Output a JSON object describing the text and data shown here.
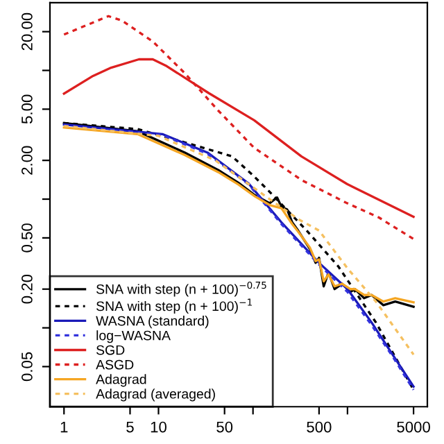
{
  "chart_data": {
    "type": "line",
    "log": "xy",
    "grid": false,
    "legend": "bottom left",
    "marker": "none",
    "xlim": [
      0.71,
      7000
    ],
    "ylim": [
      0.0244,
      33.6
    ],
    "xticks": [
      1,
      5,
      10,
      50,
      {
        "value": 100,
        "label": null
      },
      500,
      {
        "value": 1000,
        "label": null
      },
      5000
    ],
    "yticks": [
      0.05,
      {
        "value": 0.1,
        "label": null
      },
      {
        "value": 0.2,
        "label": "0.20"
      },
      {
        "value": 0.5,
        "label": "0.50"
      },
      {
        "value": 1,
        "label": null
      },
      {
        "value": 2,
        "label": "2.00"
      },
      {
        "value": 5,
        "label": "5.00"
      },
      {
        "value": 10,
        "label": null
      },
      {
        "value": 20,
        "label": "20.00"
      }
    ],
    "series": [
      {
        "name": "SNA with step (n + 100)$^{−0.75}$",
        "color": "#000000",
        "line_style": "solid",
        "x": [
          1,
          6,
          19,
          43,
          70,
          105,
          150,
          180,
          200,
          230,
          260,
          300,
          400,
          460,
          500,
          560,
          630,
          730,
          880,
          1070,
          1200,
          1500,
          1800,
          2400,
          3200,
          5000
        ],
        "values": [
          3.9,
          3.37,
          2.3,
          1.68,
          1.34,
          1.07,
          0.93,
          1.03,
          0.87,
          0.83,
          0.66,
          0.57,
          0.41,
          0.32,
          0.35,
          0.21,
          0.27,
          0.2,
          0.22,
          0.19,
          0.2,
          0.17,
          0.18,
          0.15,
          0.16,
          0.146
        ]
      },
      {
        "name": "SNA with step (n + 100)$^{−1}$",
        "color": "#000000",
        "line_style": "dashed",
        "x": [
          1,
          6,
          19,
          60,
          100,
          140,
          370,
          800,
          2000,
          5000
        ],
        "values": [
          3.9,
          3.5,
          2.76,
          2.15,
          1.53,
          1.2,
          0.57,
          0.3,
          0.11,
          0.033
        ]
      },
      {
        "name": "WASNA (standard)",
        "color": "#1a1ab8",
        "line_style": "solid",
        "x": [
          1,
          11,
          33,
          90,
          200,
          500,
          1000,
          1800,
          3000,
          5000
        ],
        "values": [
          3.8,
          3.2,
          2.3,
          1.32,
          0.66,
          0.32,
          0.2,
          0.11,
          0.062,
          0.035
        ]
      },
      {
        "name": "log−WASNA",
        "color": "#3333dd",
        "line_style": "dashed",
        "x": [
          1,
          11,
          33,
          90,
          200,
          500,
          1000,
          1800,
          3000,
          5000
        ],
        "values": [
          3.75,
          3.15,
          2.25,
          1.3,
          0.64,
          0.31,
          0.19,
          0.105,
          0.06,
          0.033
        ]
      },
      {
        "name": "SGD",
        "color": "#dd2020",
        "line_style": "solid",
        "x": [
          1,
          2.03,
          3.15,
          6.2,
          8.7,
          12.2,
          33.6,
          103,
          325,
          990,
          5000
        ],
        "values": [
          6.6,
          9.06,
          10.5,
          12.2,
          12.2,
          10.8,
          6.7,
          4.1,
          2.15,
          1.31,
          0.73
        ]
      },
      {
        "name": "ASGD",
        "color": "#dd2020",
        "line_style": "dashed",
        "x": [
          1,
          2.95,
          4.1,
          8.7,
          19,
          42.6,
          103,
          325,
          990,
          2150,
          5000
        ],
        "values": [
          19.0,
          26.4,
          24.4,
          16.8,
          9.5,
          4.9,
          2.5,
          1.41,
          0.93,
          0.72,
          0.49
        ]
      },
      {
        "name": "Adagrad",
        "color": "#f5a623",
        "line_style": "solid",
        "x": [
          1,
          6,
          19,
          43,
          70,
          105,
          150,
          200,
          260,
          300,
          400,
          460,
          500,
          560,
          630,
          730,
          880,
          1070,
          1200,
          1500,
          1800,
          2400,
          3200,
          5000
        ],
        "values": [
          3.6,
          3.2,
          2.2,
          1.62,
          1.3,
          1.05,
          0.9,
          0.85,
          0.64,
          0.56,
          0.42,
          0.33,
          0.34,
          0.23,
          0.26,
          0.21,
          0.22,
          0.2,
          0.2,
          0.18,
          0.18,
          0.16,
          0.17,
          0.158
        ]
      },
      {
        "name": "Adagrad (averaged)",
        "color": "#f5c060",
        "line_style": "dashed",
        "x": [
          1,
          10,
          40,
          150,
          300,
          500,
          1000,
          2000,
          5000
        ],
        "values": [
          3.7,
          3.1,
          2.0,
          1.0,
          0.7,
          0.57,
          0.29,
          0.16,
          0.062
        ]
      }
    ]
  }
}
